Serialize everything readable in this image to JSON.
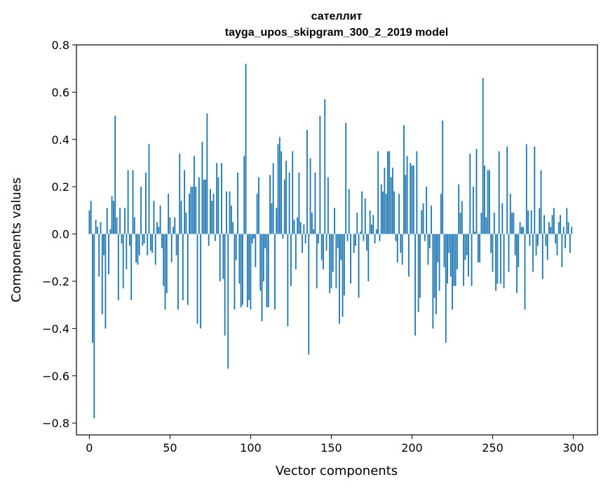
{
  "chart_data": {
    "type": "bar",
    "title_line1": "сателлит",
    "title_line2": "tayga_upos_skipgram_300_2_2019 model",
    "xlabel": "Vector components",
    "ylabel": "Components values",
    "xlim": [
      -8,
      315
    ],
    "ylim": [
      -0.85,
      0.8
    ],
    "xticks": [
      0,
      50,
      100,
      150,
      200,
      250,
      300
    ],
    "yticks": [
      -0.8,
      -0.6,
      -0.4,
      -0.2,
      0.0,
      0.2,
      0.4,
      0.6,
      0.8
    ],
    "ytick_labels": [
      "−0.8",
      "−0.6",
      "−0.4",
      "−0.2",
      "0.0",
      "0.2",
      "0.4",
      "0.6",
      "0.8"
    ],
    "xtick_labels": [
      "0",
      "50",
      "100",
      "150",
      "200",
      "250",
      "300"
    ],
    "bar_color": "#1f77b4",
    "grid": false,
    "values": [
      0.1,
      0.14,
      -0.46,
      -0.78,
      0.06,
      0.03,
      -0.18,
      0.05,
      -0.34,
      -0.09,
      -0.4,
      0.11,
      -0.17,
      0.02,
      0.16,
      0.14,
      0.5,
      0.07,
      -0.28,
      0.11,
      -0.04,
      -0.23,
      0.11,
      -0.15,
      0.27,
      -0.05,
      -0.28,
      0.27,
      0.07,
      -0.12,
      -0.13,
      -0.09,
      0.2,
      -0.05,
      -0.04,
      0.26,
      -0.09,
      0.38,
      -0.07,
      -0.08,
      0.14,
      -0.13,
      0.05,
      0.03,
      0.12,
      -0.06,
      -0.22,
      -0.32,
      -0.25,
      0.17,
      0.07,
      -0.12,
      0.03,
      0.07,
      -0.09,
      -0.32,
      0.34,
      0.14,
      -0.28,
      0.27,
      0.09,
      -0.3,
      0.17,
      0.2,
      0.2,
      0.33,
      0.2,
      -0.38,
      0.24,
      -0.4,
      0.39,
      0.23,
      0.23,
      0.51,
      -0.05,
      0.19,
      0.14,
      0.17,
      -0.03,
      0.3,
      0.24,
      -0.2,
      0.3,
      -0.19,
      -0.43,
      0.18,
      -0.57,
      0.18,
      0.12,
      0.05,
      -0.32,
      -0.11,
      0.26,
      -0.21,
      -0.31,
      -0.3,
      0.33,
      0.72,
      -0.31,
      -0.28,
      -0.32,
      -0.04,
      -0.02,
      -0.14,
      0.17,
      0.24,
      -0.24,
      -0.37,
      -0.2,
      -0.06,
      -0.31,
      -0.31,
      0.25,
      0.13,
      0.3,
      -0.32,
      0.11,
      0.38,
      0.41,
      0.35,
      -0.02,
      0.23,
      0.31,
      -0.39,
      0.26,
      -0.22,
      0.35,
      0.06,
      -0.15,
      0.07,
      0.26,
      0.05,
      -0.08,
      0.04,
      -0.04,
      0.44,
      -0.51,
      0.32,
      0.09,
      0.02,
      0.26,
      -0.23,
      -0.04,
      0.5,
      -0.11,
      -0.15,
      0.57,
      -0.07,
      0.24,
      -0.25,
      -0.23,
      -0.16,
      0.11,
      -0.23,
      -0.06,
      -0.38,
      -0.11,
      -0.35,
      -0.26,
      0.47,
      -0.03,
      0.19,
      -0.21,
      0.0,
      -0.08,
      -0.05,
      0.09,
      -0.27,
      0.01,
      0.18,
      -0.03,
      0.15,
      -0.07,
      -0.2,
      0.1,
      0.04,
      0.08,
      -0.04,
      0.02,
      0.35,
      -0.03,
      0.21,
      0.18,
      0.28,
      0.17,
      0.35,
      0.35,
      0.24,
      0.28,
      0.18,
      -0.03,
      -0.12,
      0.17,
      -0.08,
      -0.13,
      0.46,
      0.25,
      0.33,
      -0.18,
      0.3,
      0.29,
      0.29,
      -0.43,
      0.35,
      -0.33,
      -0.27,
      0.1,
      0.13,
      -0.03,
      0.2,
      -0.13,
      -0.06,
      0.12,
      -0.4,
      -0.27,
      -0.34,
      -0.12,
      -0.24,
      0.17,
      0.48,
      -0.14,
      -0.46,
      -0.21,
      -0.08,
      -0.18,
      -0.32,
      -0.22,
      -0.22,
      -0.15,
      0.21,
      0.09,
      0.14,
      -0.22,
      -0.11,
      -0.09,
      -0.18,
      0.34,
      -0.22,
      0.2,
      0.01,
      0.36,
      -0.12,
      -0.12,
      0.09,
      0.66,
      0.29,
      0.07,
      0.27,
      0.27,
      -0.08,
      -0.16,
      0.09,
      -0.24,
      -0.21,
      0.35,
      -0.21,
      0.13,
      -0.23,
      0.0,
      0.37,
      -0.16,
      0.17,
      0.09,
      0.09,
      -0.09,
      -0.25,
      -0.14,
      0.05,
      0.03,
      0.03,
      -0.32,
      0.38,
      0.1,
      -0.05,
      0.1,
      -0.16,
      0.37,
      -0.09,
      -0.05,
      0.11,
      0.27,
      -0.19,
      0.08,
      -0.05,
      -0.11,
      0.05,
      0.03,
      0.08,
      0.11,
      -0.04,
      -0.09,
      0.05,
      0.08,
      -0.14,
      0.03,
      -0.06,
      0.11,
      0.05,
      -0.08,
      0.03
    ]
  }
}
